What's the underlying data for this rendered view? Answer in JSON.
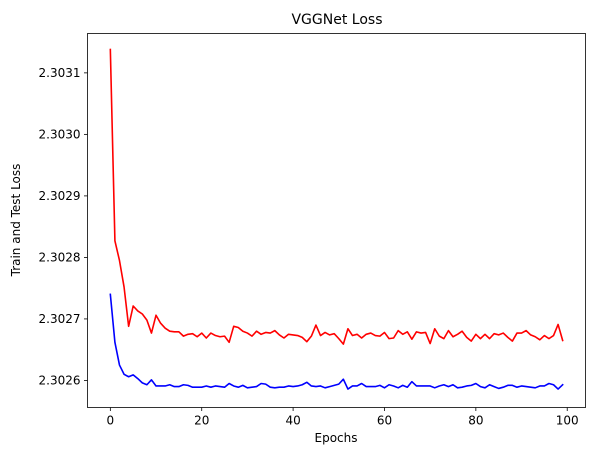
{
  "chart_data": {
    "type": "line",
    "title": "VGGNet Loss",
    "xlabel": "Epochs",
    "ylabel": "Train and Test Loss",
    "xlim": [
      -5,
      104
    ],
    "ylim": [
      2.302556,
      2.303164
    ],
    "xticks": [
      0,
      20,
      40,
      60,
      80,
      100
    ],
    "yticks": [
      2.3026,
      2.3027,
      2.3028,
      2.3029,
      2.303,
      2.3031
    ],
    "ytick_labels": [
      "2.3026",
      "2.3027",
      "2.3028",
      "2.3029",
      "2.3030",
      "2.3031"
    ],
    "grid": false,
    "series": [
      {
        "color": "#ff0000",
        "x": [
          0,
          1,
          2,
          3,
          4,
          5,
          6,
          7,
          8,
          9,
          10,
          11,
          12,
          13,
          14,
          15,
          16,
          17,
          18,
          19,
          20,
          21,
          22,
          23,
          24,
          25,
          26,
          27,
          28,
          29,
          30,
          31,
          32,
          33,
          34,
          35,
          36,
          37,
          38,
          39,
          40,
          41,
          42,
          43,
          44,
          45,
          46,
          47,
          48,
          49,
          50,
          51,
          52,
          53,
          54,
          55,
          56,
          57,
          58,
          59,
          60,
          61,
          62,
          63,
          64,
          65,
          66,
          67,
          68,
          69,
          70,
          71,
          72,
          73,
          74,
          75,
          76,
          77,
          78,
          79,
          80,
          81,
          82,
          83,
          84,
          85,
          86,
          87,
          88,
          89,
          90,
          91,
          92,
          93,
          94,
          95,
          96,
          97,
          98,
          99
        ],
        "values": [
          2.303138,
          2.302827,
          2.302795,
          2.302752,
          2.302688,
          2.302721,
          2.302713,
          2.302708,
          2.302698,
          2.302677,
          2.302706,
          2.302693,
          2.302685,
          2.30268,
          2.302679,
          2.302679,
          2.302672,
          2.302675,
          2.302676,
          2.302671,
          2.302677,
          2.302669,
          2.302677,
          2.302673,
          2.302671,
          2.302672,
          2.302662,
          2.302688,
          2.302686,
          2.30268,
          2.302677,
          2.302672,
          2.30268,
          2.302675,
          2.302678,
          2.302677,
          2.302681,
          2.302674,
          2.302669,
          2.302675,
          2.302674,
          2.302673,
          2.30267,
          2.302663,
          2.302672,
          2.30269,
          2.302673,
          2.302678,
          2.302674,
          2.302676,
          2.302668,
          2.302659,
          2.302684,
          2.302673,
          2.302675,
          2.302669,
          2.302675,
          2.302677,
          2.302673,
          2.302672,
          2.302678,
          2.302668,
          2.302669,
          2.302681,
          2.302675,
          2.302679,
          2.302667,
          2.302679,
          2.302677,
          2.302678,
          2.30266,
          2.302684,
          2.302672,
          2.302668,
          2.302681,
          2.302671,
          2.302675,
          2.30268,
          2.30267,
          2.302664,
          2.302675,
          2.302668,
          2.302675,
          2.302668,
          2.302676,
          2.302674,
          2.302677,
          2.30267,
          2.302664,
          2.302677,
          2.302677,
          2.302681,
          2.302674,
          2.302671,
          2.302666,
          2.302673,
          2.302668,
          2.302673,
          2.302691,
          2.302665
        ]
      },
      {
        "color": "#0000ff",
        "x": [
          0,
          1,
          2,
          3,
          4,
          5,
          6,
          7,
          8,
          9,
          10,
          11,
          12,
          13,
          14,
          15,
          16,
          17,
          18,
          19,
          20,
          21,
          22,
          23,
          24,
          25,
          26,
          27,
          28,
          29,
          30,
          31,
          32,
          33,
          34,
          35,
          36,
          37,
          38,
          39,
          40,
          41,
          42,
          43,
          44,
          45,
          46,
          47,
          48,
          49,
          50,
          51,
          52,
          53,
          54,
          55,
          56,
          57,
          58,
          59,
          60,
          61,
          62,
          63,
          64,
          65,
          66,
          67,
          68,
          69,
          70,
          71,
          72,
          73,
          74,
          75,
          76,
          77,
          78,
          79,
          80,
          81,
          82,
          83,
          84,
          85,
          86,
          87,
          88,
          89,
          90,
          91,
          92,
          93,
          94,
          95,
          96,
          97,
          98,
          99
        ],
        "values": [
          2.30274,
          2.302662,
          2.302625,
          2.30261,
          2.302606,
          2.302609,
          2.302603,
          2.302596,
          2.302593,
          2.302601,
          2.302591,
          2.302591,
          2.302591,
          2.302593,
          2.30259,
          2.30259,
          2.302593,
          2.302592,
          2.302589,
          2.302589,
          2.302589,
          2.302591,
          2.302589,
          2.302591,
          2.30259,
          2.302589,
          2.302595,
          2.302591,
          2.302589,
          2.302592,
          2.302588,
          2.302589,
          2.30259,
          2.302595,
          2.302594,
          2.302589,
          2.302588,
          2.302589,
          2.302589,
          2.302591,
          2.30259,
          2.302591,
          2.302593,
          2.302597,
          2.302591,
          2.30259,
          2.302591,
          2.302588,
          2.30259,
          2.302592,
          2.302594,
          2.302602,
          2.302586,
          2.302591,
          2.302591,
          2.302595,
          2.30259,
          2.30259,
          2.30259,
          2.302592,
          2.302588,
          2.302593,
          2.302591,
          2.302588,
          2.302592,
          2.302589,
          2.302598,
          2.302591,
          2.302591,
          2.302591,
          2.302591,
          2.302588,
          2.302591,
          2.302593,
          2.30259,
          2.302593,
          2.302588,
          2.302589,
          2.302591,
          2.302592,
          2.302595,
          2.30259,
          2.302588,
          2.302593,
          2.30259,
          2.302587,
          2.302589,
          2.302592,
          2.302592,
          2.302589,
          2.302591,
          2.30259,
          2.302589,
          2.302588,
          2.302591,
          2.302591,
          2.302595,
          2.302593,
          2.302586,
          2.302593
        ]
      }
    ]
  }
}
